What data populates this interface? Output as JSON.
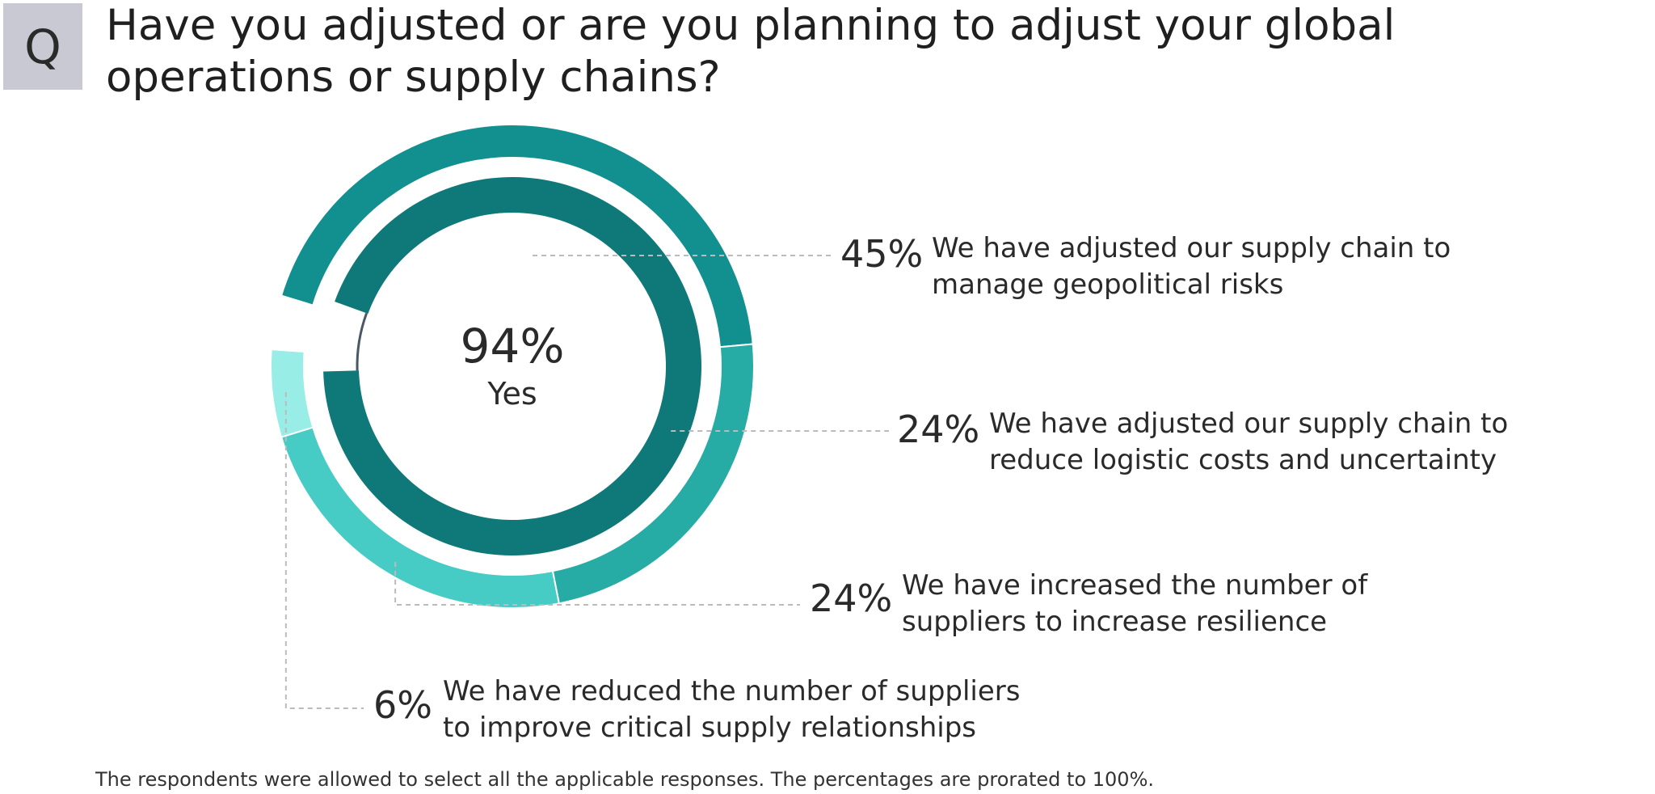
{
  "question_badge": "Q",
  "title_lines": [
    "Have you adjusted or are you planning to adjust your global",
    "operations or supply chains?"
  ],
  "footnote": "The respondents were allowed to select all the applicable responses. The percentages are prorated to 100%.",
  "chart_data": {
    "type": "pie",
    "center": {
      "value_label": "94%",
      "label": "Yes",
      "value": 94
    },
    "outer_ring": [
      {
        "value": 45,
        "value_label": "45%",
        "label_lines": [
          "We have adjusted our supply chain to",
          "manage geopolitical risks"
        ],
        "color": "#128f8f"
      },
      {
        "value": 24,
        "value_label": "24%",
        "label_lines": [
          "We have adjusted our supply chain to",
          "reduce logistic costs and uncertainty"
        ],
        "color": "#26aba5"
      },
      {
        "value": 24,
        "value_label": "24%",
        "label_lines": [
          "We have increased the number of",
          "suppliers to increase resilience"
        ],
        "color": "#46ccc5"
      },
      {
        "value": 6,
        "value_label": "6%",
        "label_lines": [
          "We have reduced the number of suppliers",
          "to improve critical supply relationships"
        ],
        "color": "#98ede6"
      }
    ],
    "inner_ring_color": "#0f7878",
    "remainder_line_color": "#4b5863",
    "leader_line_color": "#bbbbbb"
  }
}
